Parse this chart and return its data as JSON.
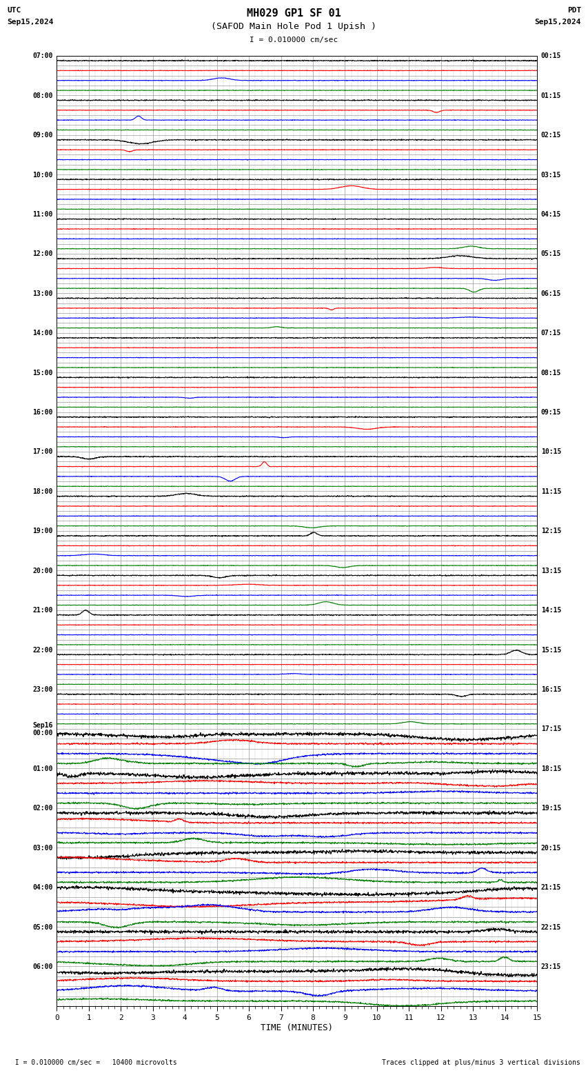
{
  "title_line1": "MH029 GP1 SF 01",
  "title_line2": "(SAFOD Main Hole Pod 1 Upish )",
  "scale_label": "I = 0.010000 cm/sec",
  "utc_line1": "UTC",
  "utc_line2": "Sep15,2024",
  "pdt_line1": "PDT",
  "pdt_line2": "Sep15,2024",
  "xlabel": "TIME (MINUTES)",
  "footer_left": "  I = 0.010000 cm/sec =   10400 microvolts",
  "footer_right": "Traces clipped at plus/minus 3 vertical divisions",
  "left_labels": [
    "07:00",
    "08:00",
    "09:00",
    "10:00",
    "11:00",
    "12:00",
    "13:00",
    "14:00",
    "15:00",
    "16:00",
    "17:00",
    "18:00",
    "19:00",
    "20:00",
    "21:00",
    "22:00",
    "23:00",
    "Sep16\n00:00",
    "01:00",
    "02:00",
    "03:00",
    "04:00",
    "05:00",
    "06:00"
  ],
  "right_labels": [
    "00:15",
    "01:15",
    "02:15",
    "03:15",
    "04:15",
    "05:15",
    "06:15",
    "07:15",
    "08:15",
    "09:15",
    "10:15",
    "11:15",
    "12:15",
    "13:15",
    "14:15",
    "15:15",
    "16:15",
    "17:15",
    "18:15",
    "19:15",
    "20:15",
    "21:15",
    "22:15",
    "23:15"
  ],
  "n_rows": 24,
  "traces_per_row": 4,
  "trace_colors": [
    "#000000",
    "#ff0000",
    "#0000ff",
    "#008000"
  ],
  "background_color": "#ffffff",
  "grid_major_color": "#999999",
  "grid_minor_color": "#cccccc",
  "xmin": 0,
  "xmax": 15,
  "figsize": [
    8.5,
    15.84
  ],
  "dpi": 100,
  "noise_levels": [
    0.006,
    0.003,
    0.003,
    0.003
  ],
  "linewidth_traces": 0.8,
  "linewidth_grid_major": 0.5,
  "linewidth_grid_minor": 0.3
}
